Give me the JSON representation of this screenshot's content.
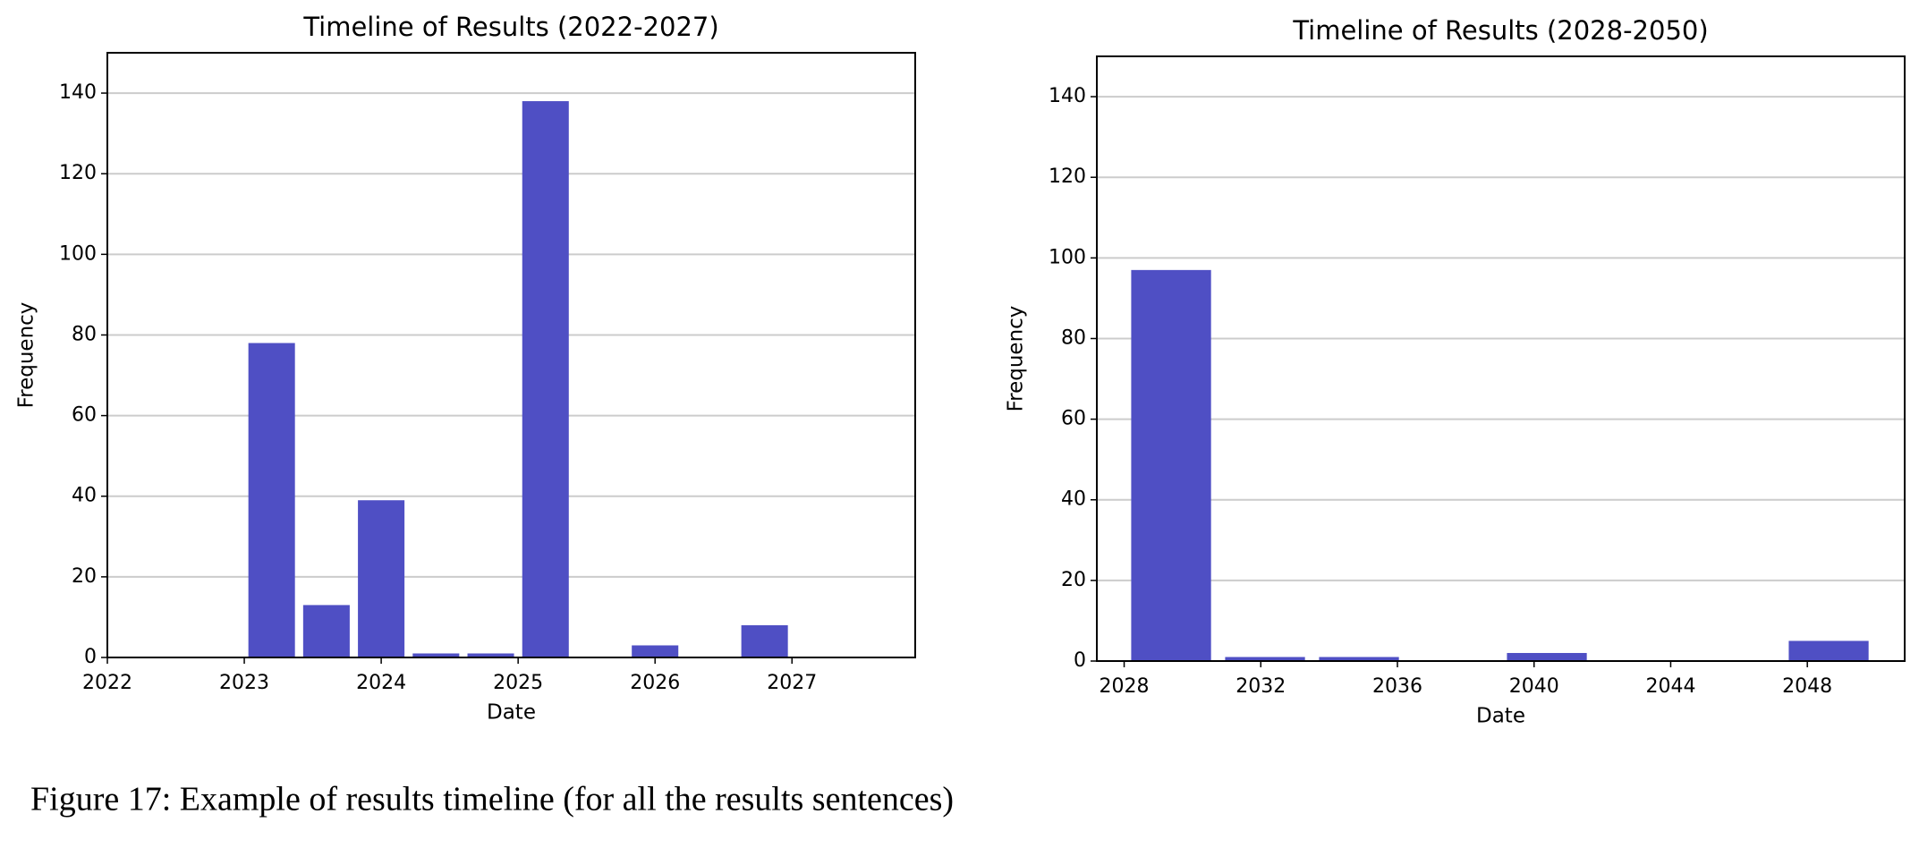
{
  "chart_data": [
    {
      "type": "histogram",
      "title": "Timeline of Results (2022-2027)",
      "xlabel": "Date",
      "ylabel": "Frequency",
      "bins": [
        2023.0,
        2023.4,
        2023.8,
        2024.2,
        2024.6,
        2025.0,
        2025.4,
        2025.8,
        2026.2,
        2026.6,
        2027.0
      ],
      "counts": [
        78,
        13,
        39,
        1,
        1,
        138,
        0,
        3,
        0,
        8
      ],
      "color": "#4f4fc4",
      "xlim": [
        2022,
        2027.9
      ],
      "xticks": [
        2022,
        2023,
        2024,
        2025,
        2026,
        2027
      ],
      "ylim": [
        0,
        150
      ],
      "yticks": [
        0,
        20,
        40,
        60,
        80,
        100,
        120,
        140
      ],
      "grid": true
    },
    {
      "type": "histogram",
      "title": "Timeline of Results (2028-2050)",
      "xlabel": "Date",
      "ylabel": "Frequency",
      "bins": [
        2028.0,
        2030.75,
        2033.5,
        2036.25,
        2039.0,
        2041.75,
        2044.5,
        2047.25,
        2050.0
      ],
      "counts": [
        97,
        1,
        1,
        0,
        2,
        0,
        0,
        5
      ],
      "color": "#4f4fc4",
      "xlim": [
        2027.2,
        2050.85
      ],
      "xticks": [
        2028,
        2032,
        2036,
        2040,
        2044,
        2048
      ],
      "ylim": [
        0,
        150
      ],
      "yticks": [
        0,
        20,
        40,
        60,
        80,
        100,
        120,
        140
      ],
      "grid": true
    }
  ],
  "caption": "Figure 17: Example of results timeline (for all the results sentences)"
}
